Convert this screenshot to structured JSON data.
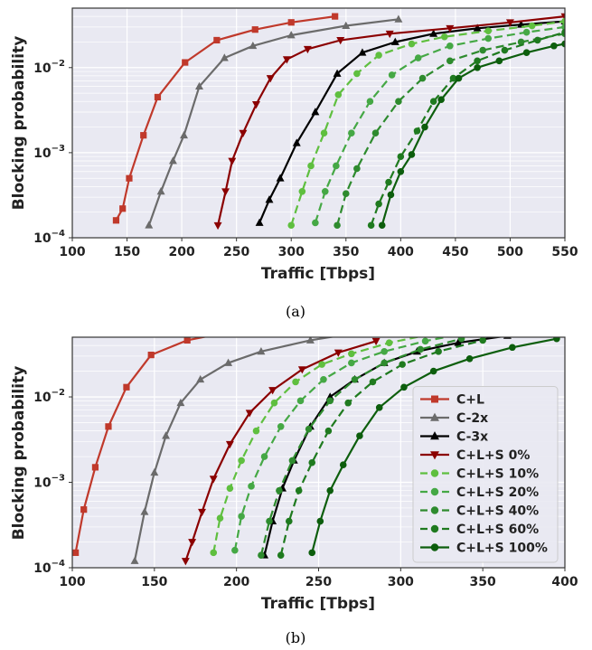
{
  "chart_data": [
    {
      "type": "line",
      "caption": "(a)",
      "xlabel": "Traffic [Tbps]",
      "ylabel": "Blocking probability",
      "xlim": [
        100,
        550
      ],
      "ylim": [
        0.0001,
        0.05
      ],
      "yscale": "log",
      "xticks": [
        100,
        150,
        200,
        250,
        300,
        350,
        400,
        450,
        500,
        550
      ],
      "yticks": [
        {
          "v": 0.0001,
          "base": "10",
          "exp": "−4"
        },
        {
          "v": 0.001,
          "base": "10",
          "exp": "−3"
        },
        {
          "v": 0.01,
          "base": "10",
          "exp": "−2"
        }
      ],
      "grid": true,
      "legend": "none",
      "series": [
        {
          "name": "C+L",
          "color": "#c0392b",
          "dash": "solid",
          "marker": "square",
          "x": [
            140,
            146,
            152,
            165,
            178,
            203,
            232,
            267,
            300,
            340
          ],
          "y": [
            0.00016,
            0.00022,
            0.0005,
            0.0016,
            0.0045,
            0.0115,
            0.021,
            0.028,
            0.034,
            0.04
          ]
        },
        {
          "name": "C-2x",
          "color": "#6b6b6b",
          "dash": "solid",
          "marker": "triangle-up",
          "x": [
            170,
            181,
            192,
            202,
            216,
            239,
            265,
            300,
            350,
            398
          ],
          "y": [
            0.00014,
            0.00035,
            0.0008,
            0.0016,
            0.006,
            0.013,
            0.018,
            0.024,
            0.031,
            0.037
          ]
        },
        {
          "name": "C-3x",
          "color": "#000000",
          "dash": "solid",
          "marker": "triangle-up",
          "x": [
            271,
            280,
            290,
            305,
            322,
            342,
            365,
            395,
            430,
            470,
            510,
            550
          ],
          "y": [
            0.00015,
            0.00028,
            0.0005,
            0.0013,
            0.003,
            0.0085,
            0.015,
            0.02,
            0.025,
            0.029,
            0.032,
            0.035
          ]
        },
        {
          "name": "C+L+S 0%",
          "color": "#8b0000",
          "dash": "solid",
          "marker": "triangle-down",
          "x": [
            233,
            240,
            246,
            256,
            268,
            281,
            296,
            315,
            345,
            390,
            445,
            500,
            550
          ],
          "y": [
            0.00014,
            0.00035,
            0.0008,
            0.0017,
            0.0037,
            0.0075,
            0.0125,
            0.0165,
            0.021,
            0.025,
            0.029,
            0.034,
            0.04
          ]
        },
        {
          "name": "C+L+S 10%",
          "color": "#5fbf3f",
          "dash": "dashed",
          "marker": "circle",
          "x": [
            300,
            310,
            318,
            330,
            343,
            360,
            380,
            410,
            440,
            480,
            520,
            550
          ],
          "y": [
            0.00014,
            0.00035,
            0.0007,
            0.0017,
            0.0048,
            0.0085,
            0.014,
            0.019,
            0.023,
            0.027,
            0.031,
            0.035
          ]
        },
        {
          "name": "C+L+S 20%",
          "color": "#45a845",
          "dash": "dashed",
          "marker": "circle",
          "x": [
            322,
            331,
            341,
            355,
            372,
            392,
            416,
            445,
            480,
            515,
            550
          ],
          "y": [
            0.00015,
            0.00035,
            0.0007,
            0.0017,
            0.004,
            0.0082,
            0.013,
            0.018,
            0.022,
            0.026,
            0.03
          ]
        },
        {
          "name": "C+L+S 40%",
          "color": "#2e8b2e",
          "dash": "dashed",
          "marker": "circle",
          "x": [
            342,
            350,
            360,
            377,
            398,
            420,
            445,
            475,
            510,
            550
          ],
          "y": [
            0.00014,
            0.00033,
            0.00065,
            0.0017,
            0.004,
            0.0075,
            0.012,
            0.016,
            0.02,
            0.025
          ]
        },
        {
          "name": "C+L+S 60%",
          "color": "#1f7a1f",
          "dash": "dashed",
          "marker": "circle",
          "x": [
            373,
            380,
            389,
            400,
            415,
            430,
            448,
            470,
            495,
            525,
            550
          ],
          "y": [
            0.00014,
            0.00025,
            0.00045,
            0.0009,
            0.0018,
            0.004,
            0.0075,
            0.012,
            0.016,
            0.021,
            0.026
          ]
        },
        {
          "name": "C+L+S 100%",
          "color": "#0d5e0d",
          "dash": "solid",
          "marker": "circle",
          "x": [
            383,
            391,
            400,
            410,
            422,
            437,
            453,
            470,
            490,
            515,
            540,
            550
          ],
          "y": [
            0.00014,
            0.00032,
            0.0006,
            0.00095,
            0.002,
            0.0042,
            0.0075,
            0.01,
            0.012,
            0.015,
            0.018,
            0.019
          ]
        }
      ]
    },
    {
      "type": "line",
      "caption": "(b)",
      "xlabel": "Traffic [Tbps]",
      "ylabel": "Blocking probability",
      "xlim": [
        100,
        400
      ],
      "ylim": [
        0.0001,
        0.05
      ],
      "yscale": "log",
      "xticks": [
        100,
        150,
        200,
        250,
        300,
        350,
        400
      ],
      "yticks": [
        {
          "v": 0.0001,
          "base": "10",
          "exp": "−4"
        },
        {
          "v": 0.001,
          "base": "10",
          "exp": "−3"
        },
        {
          "v": 0.01,
          "base": "10",
          "exp": "−2"
        }
      ],
      "grid": true,
      "legend": "lower-right",
      "series": [
        {
          "name": "C+L",
          "color": "#c0392b",
          "dash": "solid",
          "marker": "square",
          "x": [
            102,
            107,
            114,
            122,
            133,
            148,
            170,
            200
          ],
          "y": [
            0.00015,
            0.00048,
            0.0015,
            0.0045,
            0.013,
            0.031,
            0.046,
            0.06
          ]
        },
        {
          "name": "C-2x",
          "color": "#6b6b6b",
          "dash": "solid",
          "marker": "triangle-up",
          "x": [
            138,
            144,
            150,
            157,
            166,
            178,
            195,
            215,
            245,
            270
          ],
          "y": [
            0.00012,
            0.00045,
            0.0013,
            0.0035,
            0.0085,
            0.016,
            0.025,
            0.034,
            0.046,
            0.055
          ]
        },
        {
          "name": "C-3x",
          "color": "#000000",
          "dash": "solid",
          "marker": "triangle-up",
          "x": [
            217,
            222,
            228,
            235,
            245,
            257,
            272,
            290,
            310,
            335,
            365
          ],
          "y": [
            0.00014,
            0.00035,
            0.00085,
            0.0018,
            0.0045,
            0.01,
            0.016,
            0.025,
            0.034,
            0.043,
            0.052
          ]
        },
        {
          "name": "C+L+S 0%",
          "color": "#8b0000",
          "dash": "solid",
          "marker": "triangle-down",
          "x": [
            169,
            173,
            179,
            186,
            196,
            208,
            222,
            240,
            262,
            285
          ],
          "y": [
            0.00012,
            0.0002,
            0.00045,
            0.0011,
            0.0028,
            0.0065,
            0.012,
            0.021,
            0.033,
            0.045
          ]
        },
        {
          "name": "C+L+S 10%",
          "color": "#5fbf3f",
          "dash": "dashed",
          "marker": "circle",
          "x": [
            186,
            190,
            196,
            203,
            212,
            223,
            236,
            252,
            270,
            293,
            320
          ],
          "y": [
            0.00015,
            0.00038,
            0.00085,
            0.0018,
            0.004,
            0.0085,
            0.015,
            0.024,
            0.032,
            0.043,
            0.055
          ]
        },
        {
          "name": "C+L+S 20%",
          "color": "#45a845",
          "dash": "dashed",
          "marker": "circle",
          "x": [
            199,
            203,
            209,
            217,
            227,
            239,
            253,
            270,
            290,
            315,
            340
          ],
          "y": [
            0.00016,
            0.0004,
            0.0009,
            0.002,
            0.0045,
            0.009,
            0.016,
            0.025,
            0.034,
            0.045,
            0.056
          ]
        },
        {
          "name": "C+L+S 40%",
          "color": "#2e8b2e",
          "dash": "dashed",
          "marker": "circle",
          "x": [
            215,
            220,
            226,
            234,
            244,
            257,
            272,
            290,
            312,
            337
          ],
          "y": [
            0.00014,
            0.00035,
            0.0008,
            0.0018,
            0.0042,
            0.009,
            0.016,
            0.025,
            0.036,
            0.048
          ]
        },
        {
          "name": "C+L+S 60%",
          "color": "#1f7a1f",
          "dash": "dashed",
          "marker": "circle",
          "x": [
            227,
            232,
            238,
            246,
            256,
            268,
            283,
            301,
            323,
            350
          ],
          "y": [
            0.00014,
            0.00035,
            0.0008,
            0.0017,
            0.004,
            0.0085,
            0.015,
            0.024,
            0.034,
            0.046
          ]
        },
        {
          "name": "C+L+S 100%",
          "color": "#0d5e0d",
          "dash": "solid",
          "marker": "circle",
          "x": [
            246,
            251,
            257,
            265,
            275,
            287,
            302,
            320,
            342,
            368,
            395
          ],
          "y": [
            0.00015,
            0.00035,
            0.0008,
            0.0016,
            0.0035,
            0.0075,
            0.013,
            0.02,
            0.028,
            0.038,
            0.048
          ]
        }
      ]
    }
  ]
}
